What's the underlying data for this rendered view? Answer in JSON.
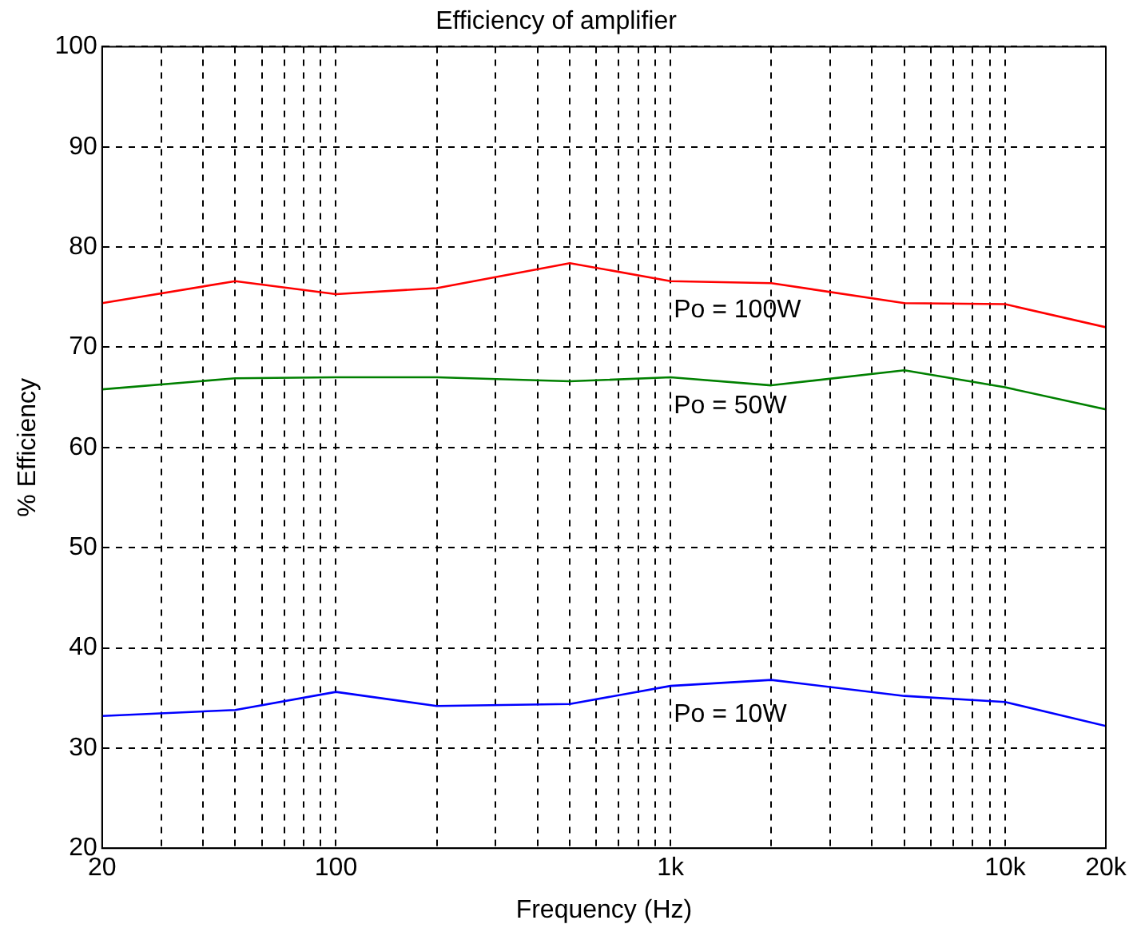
{
  "chart_data": {
    "type": "line",
    "title": "Efficiency of amplifier",
    "xlabel": "Frequency (Hz)",
    "ylabel": "% Efficiency",
    "x": [
      20,
      50,
      100,
      200,
      500,
      1000,
      2000,
      5000,
      10000,
      20000
    ],
    "series": [
      {
        "name": "Po = 100W",
        "color": "#ff0000",
        "values": [
          74.4,
          76.6,
          75.3,
          75.9,
          78.4,
          76.6,
          76.4,
          74.4,
          74.3,
          72
        ]
      },
      {
        "name": "Po = 50W",
        "color": "#008000",
        "values": [
          65.8,
          66.9,
          67,
          67,
          66.6,
          67,
          66.2,
          67.7,
          66,
          63.8
        ]
      },
      {
        "name": "Po = 10W",
        "color": "#0000ff",
        "values": [
          33.2,
          33.8,
          35.6,
          34.2,
          34.4,
          36.2,
          36.8,
          35.2,
          34.6,
          32.2
        ]
      }
    ],
    "log": "x",
    "xlim": [
      20,
      20000
    ],
    "xticks": [
      20,
      {
        "value": 30,
        "label": null
      },
      {
        "value": 40,
        "label": null
      },
      {
        "value": 50,
        "label": null
      },
      {
        "value": 60,
        "label": null
      },
      {
        "value": 70,
        "label": null
      },
      {
        "value": 80,
        "label": null
      },
      {
        "value": 90,
        "label": null
      },
      100,
      {
        "value": 200,
        "label": null
      },
      {
        "value": 300,
        "label": null
      },
      {
        "value": 400,
        "label": null
      },
      {
        "value": 500,
        "label": null
      },
      {
        "value": 600,
        "label": null
      },
      {
        "value": 700,
        "label": null
      },
      {
        "value": 800,
        "label": null
      },
      {
        "value": 900,
        "label": null
      },
      {
        "value": 1000,
        "label": "1k"
      },
      {
        "value": 2000,
        "label": null
      },
      {
        "value": 3000,
        "label": null
      },
      {
        "value": 4000,
        "label": null
      },
      {
        "value": 5000,
        "label": null
      },
      {
        "value": 6000,
        "label": null
      },
      {
        "value": 7000,
        "label": null
      },
      {
        "value": 8000,
        "label": null
      },
      {
        "value": 9000,
        "label": null
      },
      {
        "value": 10000,
        "label": "10k"
      },
      {
        "value": 20000,
        "label": "20k"
      }
    ],
    "ylim": [
      20,
      100
    ],
    "yticks": [
      20,
      30,
      40,
      50,
      60,
      70,
      80,
      90,
      100
    ],
    "grid": true,
    "legend": false,
    "marker": "none",
    "line_style": "solid"
  }
}
